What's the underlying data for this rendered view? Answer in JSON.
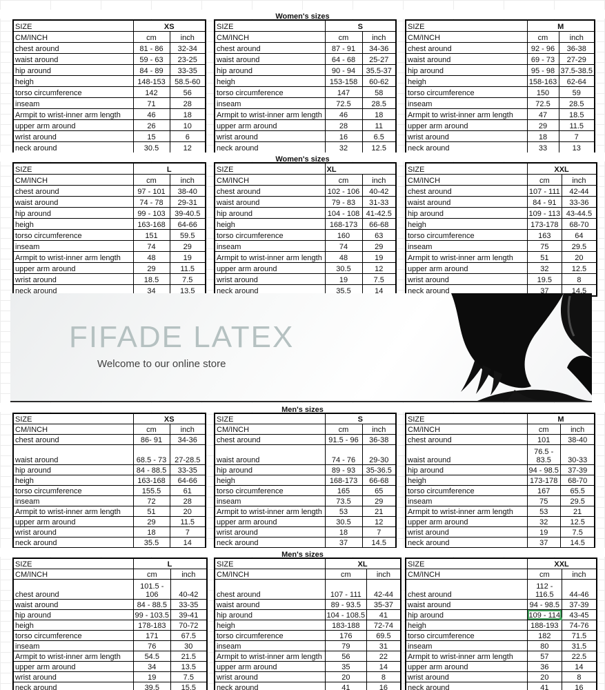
{
  "labels": {
    "size": "SIZE",
    "cm_inch": "CM/INCH",
    "cm": "cm",
    "inch": "inch"
  },
  "colors": {
    "selection_green": "#44a35e",
    "brand_text": "#b5c1c1",
    "grid_line": "#ececec"
  },
  "banner": {
    "brand": "FIFADE LATEX",
    "tagline": "Welcome to our online store"
  },
  "blocks": [
    {
      "title": "Women's sizes",
      "tables": [
        {
          "size": "XS",
          "size_align": "center",
          "rows": [
            {
              "label": "chest around",
              "cm": "81 - 86",
              "inch": "32-34"
            },
            {
              "label": "waist around",
              "cm": "59 - 63",
              "inch": "23-25"
            },
            {
              "label": "hip around",
              "cm": "84 - 89",
              "inch": "33-35"
            },
            {
              "label": "heigh",
              "cm": "148-153",
              "inch": "58.5-60"
            },
            {
              "label": "torso circumference",
              "cm": "142",
              "inch": "56"
            },
            {
              "label": "inseam",
              "cm": "71",
              "inch": "28"
            },
            {
              "label": "Armpit to wrist-inner arm length",
              "cm": "46",
              "inch": "18"
            },
            {
              "label": "upper arm around",
              "cm": "26",
              "inch": "10"
            },
            {
              "label": "wrist around",
              "cm": "15",
              "inch": "6"
            },
            {
              "label": "neck around",
              "cm": "30.5",
              "inch": "12"
            }
          ]
        },
        {
          "size": "S",
          "size_align": "center",
          "rows": [
            {
              "label": "chest around",
              "cm": "87 - 91",
              "inch": "34-36"
            },
            {
              "label": "waist around",
              "cm": "64 - 68",
              "inch": "25-27"
            },
            {
              "label": "hip around",
              "cm": "90 - 94",
              "inch": "35.5-37"
            },
            {
              "label": "heigh",
              "cm": "153-158",
              "inch": "60-62"
            },
            {
              "label": "torso circumference",
              "cm": "147",
              "inch": "58"
            },
            {
              "label": "inseam",
              "cm": "72.5",
              "inch": "28.5"
            },
            {
              "label": "Armpit to wrist-inner arm length",
              "cm": "46",
              "inch": "18"
            },
            {
              "label": "upper arm around",
              "cm": "28",
              "inch": "11"
            },
            {
              "label": "wrist around",
              "cm": "16",
              "inch": "6.5"
            },
            {
              "label": "neck around",
              "cm": "32",
              "inch": "12.5"
            }
          ]
        },
        {
          "size": "M",
          "size_align": "center",
          "rows": [
            {
              "label": "chest around",
              "cm": "92 - 96",
              "inch": "36-38"
            },
            {
              "label": "waist around",
              "cm": "69 - 73",
              "inch": "27-29"
            },
            {
              "label": "hip around",
              "cm": "95 - 98",
              "inch": "37.5-38.5"
            },
            {
              "label": "heigh",
              "cm": "158-163",
              "inch": "62-64"
            },
            {
              "label": "torso circumference",
              "cm": "150",
              "inch": "59"
            },
            {
              "label": "inseam",
              "cm": "72.5",
              "inch": "28.5"
            },
            {
              "label": "Armpit to wrist-inner arm length",
              "cm": "47",
              "inch": "18.5"
            },
            {
              "label": "upper arm around",
              "cm": "29",
              "inch": "11.5"
            },
            {
              "label": "wrist around",
              "cm": "18",
              "inch": "7"
            },
            {
              "label": "neck around",
              "cm": "33",
              "inch": "13"
            }
          ]
        }
      ]
    },
    {
      "title": "Women's sizes",
      "tables": [
        {
          "size": "L",
          "size_align": "center",
          "rows": [
            {
              "label": "chest around",
              "cm": "97 - 101",
              "inch": "38-40"
            },
            {
              "label": "waist around",
              "cm": "74 - 78",
              "inch": "29-31"
            },
            {
              "label": "hip around",
              "cm": "99 - 103",
              "inch": "39-40.5"
            },
            {
              "label": "heigh",
              "cm": "163-168",
              "inch": "64-66"
            },
            {
              "label": "torso circumference",
              "cm": "151",
              "inch": "59.5"
            },
            {
              "label": "inseam",
              "cm": "74",
              "inch": "29"
            },
            {
              "label": "Armpit to wrist-inner arm length",
              "cm": "48",
              "inch": "19"
            },
            {
              "label": "upper arm around",
              "cm": "29",
              "inch": "11.5"
            },
            {
              "label": "wrist around",
              "cm": "18.5",
              "inch": "7.5"
            },
            {
              "label": "neck around",
              "cm": "34",
              "inch": "13.5"
            }
          ]
        },
        {
          "size": "XL",
          "size_align": "left",
          "rows": [
            {
              "label": "chest around",
              "cm": "102 - 106",
              "inch": "40-42"
            },
            {
              "label": "waist around",
              "cm": "79 - 83",
              "inch": "31-33"
            },
            {
              "label": "hip around",
              "cm": "104 - 108",
              "inch": "41-42.5"
            },
            {
              "label": "heigh",
              "cm": "168-173",
              "inch": "66-68"
            },
            {
              "label": "torso circumference",
              "cm": "160",
              "inch": "63"
            },
            {
              "label": "inseam",
              "cm": "74",
              "inch": "29"
            },
            {
              "label": "Armpit to wrist-inner arm length",
              "cm": "48",
              "inch": "19"
            },
            {
              "label": "upper arm around",
              "cm": "30.5",
              "inch": "12"
            },
            {
              "label": "wrist around",
              "cm": "19",
              "inch": "7.5"
            },
            {
              "label": "neck around",
              "cm": "35.5",
              "inch": "14"
            }
          ]
        },
        {
          "size": "XXL",
          "size_align": "center",
          "rows": [
            {
              "label": "chest around",
              "cm": "107 - 111",
              "inch": "42-44"
            },
            {
              "label": "waist around",
              "cm": "84 - 91",
              "inch": "33-36"
            },
            {
              "label": "hip around",
              "cm": "109 - 113",
              "inch": "43-44.5"
            },
            {
              "label": "heigh",
              "cm": "173-178",
              "inch": "68-70"
            },
            {
              "label": "torso circumference",
              "cm": "163",
              "inch": "64"
            },
            {
              "label": "inseam",
              "cm": "75",
              "inch": "29.5"
            },
            {
              "label": "Armpit to wrist-inner arm length",
              "cm": "51",
              "inch": "20"
            },
            {
              "label": "upper arm around",
              "cm": "32",
              "inch": "12.5"
            },
            {
              "label": "wrist around",
              "cm": "19.5",
              "inch": "8"
            },
            {
              "label": "neck around",
              "cm": "37",
              "inch": "14.5"
            }
          ]
        }
      ]
    },
    {
      "title": "Men's sizes",
      "tables": [
        {
          "size": "XS",
          "size_align": "center",
          "rows": [
            {
              "label": "chest around",
              "cm": "86- 91",
              "inch": "34-36"
            },
            {
              "label": "waist around",
              "cm": "68.5 - 73",
              "inch": "27-28.5",
              "tall": true
            },
            {
              "label": "hip around",
              "cm": "84 - 88.5",
              "inch": "33-35"
            },
            {
              "label": "heigh",
              "cm": "163-168",
              "inch": "64-66"
            },
            {
              "label": "torso circumference",
              "cm": "155.5",
              "inch": "61"
            },
            {
              "label": "inseam",
              "cm": "72",
              "inch": "28"
            },
            {
              "label": "Armpit to wrist-inner arm length",
              "cm": "51",
              "inch": "20"
            },
            {
              "label": "upper arm around",
              "cm": "29",
              "inch": "11.5"
            },
            {
              "label": "wrist around",
              "cm": "18",
              "inch": "7"
            },
            {
              "label": "neck around",
              "cm": "35.5",
              "inch": "14"
            }
          ]
        },
        {
          "size": "S",
          "size_align": "center",
          "rows": [
            {
              "label": "chest around",
              "cm": "91.5 - 96",
              "inch": "36-38"
            },
            {
              "label": "waist around",
              "cm": "74 - 76",
              "inch": "29-30",
              "tall": true
            },
            {
              "label": "hip around",
              "cm": "89 - 93",
              "inch": "35-36.5"
            },
            {
              "label": "heigh",
              "cm": "168-173",
              "inch": "66-68"
            },
            {
              "label": "torso circumference",
              "cm": "165",
              "inch": "65"
            },
            {
              "label": "inseam",
              "cm": "73.5",
              "inch": "29"
            },
            {
              "label": "Armpit to wrist-inner arm length",
              "cm": "53",
              "inch": "21"
            },
            {
              "label": "upper arm around",
              "cm": "30.5",
              "inch": "12"
            },
            {
              "label": "wrist around",
              "cm": "18",
              "inch": "7"
            },
            {
              "label": "neck around",
              "cm": "37",
              "inch": "14.5"
            }
          ]
        },
        {
          "size": "M",
          "size_align": "center",
          "rows": [
            {
              "label": "chest around",
              "cm": "101",
              "inch": "38-40"
            },
            {
              "label": "waist around",
              "cm": "76.5 -\n83.5",
              "inch": "30-33",
              "tall": true
            },
            {
              "label": "hip around",
              "cm": "94 - 98.5",
              "inch": "37-39"
            },
            {
              "label": "heigh",
              "cm": "173-178",
              "inch": "68-70"
            },
            {
              "label": "torso circumference",
              "cm": "167",
              "inch": "65.5"
            },
            {
              "label": "inseam",
              "cm": "75",
              "inch": "29.5"
            },
            {
              "label": "Armpit to wrist-inner arm length",
              "cm": "53",
              "inch": "21"
            },
            {
              "label": "upper arm around",
              "cm": "32",
              "inch": "12.5"
            },
            {
              "label": "wrist around",
              "cm": "19",
              "inch": "7.5"
            },
            {
              "label": "neck around",
              "cm": "37",
              "inch": "14.5"
            }
          ]
        }
      ]
    },
    {
      "title": "Men's sizes",
      "tables": [
        {
          "size": "L",
          "size_align": "center",
          "rows": [
            {
              "label": "chest around",
              "cm": "101.5 -\n106",
              "inch": "40-42",
              "tall": true
            },
            {
              "label": "waist around",
              "cm": "84 - 88.5",
              "inch": "33-35"
            },
            {
              "label": "hip around",
              "cm": "99 - 103.5",
              "inch": "39-41"
            },
            {
              "label": "heigh",
              "cm": "178-183",
              "inch": "70-72"
            },
            {
              "label": "torso circumference",
              "cm": "171",
              "inch": "67.5"
            },
            {
              "label": "inseam",
              "cm": "76",
              "inch": "30"
            },
            {
              "label": "Armpit to wrist-inner arm length",
              "cm": "54.5",
              "inch": "21.5"
            },
            {
              "label": "upper arm around",
              "cm": "34",
              "inch": "13.5"
            },
            {
              "label": "wrist around",
              "cm": "19",
              "inch": "7.5"
            },
            {
              "label": "neck around",
              "cm": "39.5",
              "inch": "15.5"
            }
          ]
        },
        {
          "size": "XL",
          "size_align": "center",
          "rows": [
            {
              "label": "chest around",
              "cm": "107 - 111",
              "inch": "42-44",
              "tall": true
            },
            {
              "label": "waist around",
              "cm": "89 - 93.5",
              "inch": "35-37"
            },
            {
              "label": "hip around",
              "cm": "104 - 108.5",
              "inch": "41"
            },
            {
              "label": "heigh",
              "cm": "183-188",
              "inch": "72-74"
            },
            {
              "label": "torso circumference",
              "cm": "176",
              "inch": "69.5"
            },
            {
              "label": "inseam",
              "cm": "79",
              "inch": "31"
            },
            {
              "label": "Armpit to wrist-inner arm length",
              "cm": "56",
              "inch": "22"
            },
            {
              "label": "upper arm around",
              "cm": "35",
              "inch": "14"
            },
            {
              "label": "wrist around",
              "cm": "20",
              "inch": "8"
            },
            {
              "label": "neck around",
              "cm": "41",
              "inch": "16"
            }
          ]
        },
        {
          "size": "XXL",
          "size_align": "center",
          "rows": [
            {
              "label": "chest around",
              "cm": "112 -\n116.5",
              "inch": "44-46",
              "tall": true
            },
            {
              "label": "waist around",
              "cm": "94 - 98.5",
              "inch": "37-39"
            },
            {
              "label": "hip around",
              "cm": "109 - 114",
              "inch": "43-45",
              "selected": "cm"
            },
            {
              "label": "heigh",
              "cm": "188-193",
              "inch": "74-76"
            },
            {
              "label": "torso circumference",
              "cm": "182",
              "inch": "71.5"
            },
            {
              "label": "inseam",
              "cm": "80",
              "inch": "31.5"
            },
            {
              "label": "Armpit to wrist-inner arm length",
              "cm": "57",
              "inch": "22.5"
            },
            {
              "label": "upper arm around",
              "cm": "36",
              "inch": "14"
            },
            {
              "label": "wrist around",
              "cm": "20",
              "inch": "8"
            },
            {
              "label": "neck around",
              "cm": "41",
              "inch": "16"
            }
          ]
        }
      ]
    }
  ]
}
